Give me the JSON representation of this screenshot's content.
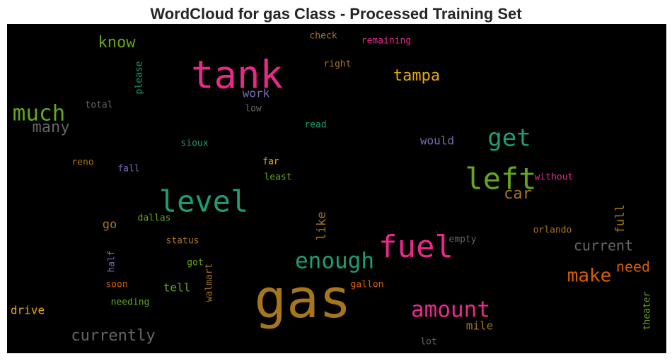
{
  "chart_data": {
    "type": "wordcloud",
    "title": "WordCloud for gas Class - Processed Training Set",
    "background": "#000000",
    "words": [
      {
        "text": "gas",
        "color": "#a6761d"
      },
      {
        "text": "tank",
        "color": "#e7298a"
      },
      {
        "text": "fuel",
        "color": "#e7298a"
      },
      {
        "text": "left",
        "color": "#66a61e"
      },
      {
        "text": "level",
        "color": "#1b9e77"
      },
      {
        "text": "get",
        "color": "#1b9e77"
      },
      {
        "text": "much",
        "color": "#66a61e"
      },
      {
        "text": "enough",
        "color": "#1b9e77"
      },
      {
        "text": "amount",
        "color": "#e7298a"
      },
      {
        "text": "make",
        "color": "#d95f02"
      },
      {
        "text": "tampa",
        "color": "#e6ab02"
      },
      {
        "text": "know",
        "color": "#66a61e"
      },
      {
        "text": "many",
        "color": "#666666"
      },
      {
        "text": "currently",
        "color": "#666666"
      },
      {
        "text": "current",
        "color": "#666666"
      },
      {
        "text": "need",
        "color": "#d95f02"
      },
      {
        "text": "car",
        "color": "#a6761d"
      },
      {
        "text": "would",
        "color": "#7570b3"
      },
      {
        "text": "work",
        "color": "#7570b3"
      },
      {
        "text": "low",
        "color": "#666666"
      },
      {
        "text": "total",
        "color": "#666666"
      },
      {
        "text": "check",
        "color": "#a6761d"
      },
      {
        "text": "remaining",
        "color": "#e7298a"
      },
      {
        "text": "right",
        "color": "#a6761d"
      },
      {
        "text": "please",
        "color": "#1b9e77"
      },
      {
        "text": "read",
        "color": "#1b9e77"
      },
      {
        "text": "sioux",
        "color": "#1b9e77"
      },
      {
        "text": "reno",
        "color": "#a6761d"
      },
      {
        "text": "fall",
        "color": "#7570b3"
      },
      {
        "text": "far",
        "color": "#e6ab02"
      },
      {
        "text": "least",
        "color": "#66a61e"
      },
      {
        "text": "without",
        "color": "#e7298a"
      },
      {
        "text": "go",
        "color": "#a6761d"
      },
      {
        "text": "dallas",
        "color": "#66a61e"
      },
      {
        "text": "like",
        "color": "#a6761d"
      },
      {
        "text": "full",
        "color": "#a6761d"
      },
      {
        "text": "orlando",
        "color": "#a6761d"
      },
      {
        "text": "empty",
        "color": "#666666"
      },
      {
        "text": "status",
        "color": "#a6761d"
      },
      {
        "text": "half",
        "color": "#7570b3"
      },
      {
        "text": "got",
        "color": "#66a61e"
      },
      {
        "text": "walmart",
        "color": "#a6761d"
      },
      {
        "text": "soon",
        "color": "#d95f02"
      },
      {
        "text": "tell",
        "color": "#66a61e"
      },
      {
        "text": "gallon",
        "color": "#d95f02"
      },
      {
        "text": "needing",
        "color": "#66a61e"
      },
      {
        "text": "drive",
        "color": "#e6ab02"
      },
      {
        "text": "mile",
        "color": "#a6761d"
      },
      {
        "text": "theater",
        "color": "#66a61e"
      },
      {
        "text": "lot",
        "color": "#666666"
      }
    ]
  }
}
